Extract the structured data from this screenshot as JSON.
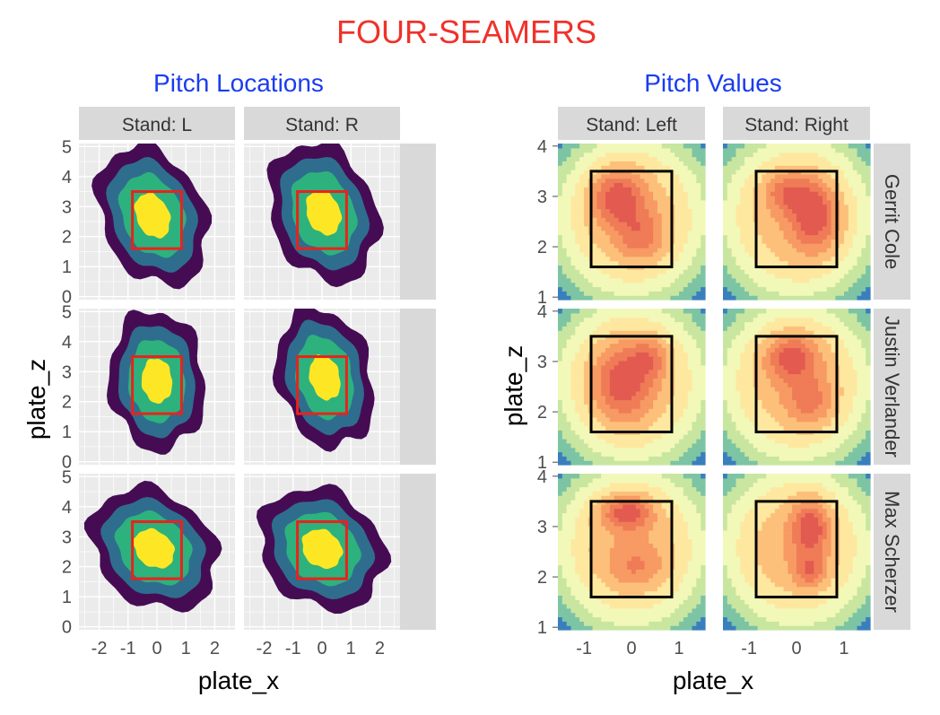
{
  "title": "FOUR-SEAMERS",
  "colors": {
    "title": "#f0322a",
    "panel_title": "#1b3cf0",
    "panel_bg": "#ebebeb",
    "strip_bg": "#d9d9d9",
    "grid": "#ffffff",
    "zone_left": "#e8231b",
    "zone_right": "#000000",
    "density": [
      "#450c54",
      "#2f6d8e",
      "#2db27d",
      "#fde725"
    ],
    "value": [
      "#3a7fbd",
      "#7cc4a4",
      "#c8e6a0",
      "#f2f8b8",
      "#fee8a0",
      "#fdc07a",
      "#f79a63",
      "#ef7b57",
      "#e25a50"
    ]
  },
  "chart_data": [
    {
      "type": "heatmap",
      "subtitle": "Pitch Locations",
      "xlabel": "plate_x",
      "ylabel": "plate_z",
      "col_strips": [
        "Stand: L",
        "Stand: R"
      ],
      "row_strips": [
        "Gerrit Cole",
        "Justin Verlander",
        "Max Scherzer"
      ],
      "xlim": [
        -2.7,
        2.7
      ],
      "ylim": [
        -0.1,
        5.1
      ],
      "x_ticks": [
        -2,
        -1,
        0,
        1,
        2
      ],
      "y_ticks": [
        0,
        1,
        2,
        3,
        4,
        5
      ],
      "grid": true,
      "strike_zone": {
        "x": [
          -0.85,
          0.85
        ],
        "z": [
          1.6,
          3.5
        ]
      },
      "density_levels": 4,
      "panels": [
        [
          {
            "cx": -0.15,
            "cz": 2.7,
            "sx": 0.95,
            "sz": 1.2,
            "skew": -0.22
          },
          {
            "cx": 0.05,
            "cz": 2.8,
            "sx": 0.95,
            "sz": 1.2,
            "skew": -0.18
          }
        ],
        [
          {
            "cx": 0.0,
            "cz": 2.7,
            "sx": 0.85,
            "sz": 1.2,
            "skew": -0.05
          },
          {
            "cx": 0.1,
            "cz": 2.8,
            "sx": 0.85,
            "sz": 1.2,
            "skew": -0.15
          }
        ],
        [
          {
            "cx": -0.1,
            "cz": 2.6,
            "sx": 1.1,
            "sz": 1.05,
            "skew": -0.25
          },
          {
            "cx": 0.0,
            "cz": 2.6,
            "sx": 1.1,
            "sz": 1.05,
            "skew": -0.2
          }
        ]
      ]
    },
    {
      "type": "heatmap",
      "subtitle": "Pitch Values",
      "xlabel": "plate_x",
      "ylabel": "plate_z",
      "col_strips": [
        "Stand: Left",
        "Stand: Right"
      ],
      "row_strips": [
        "Gerrit Cole",
        "Justin Verlander",
        "Max Scherzer"
      ],
      "xlim": [
        -1.55,
        1.55
      ],
      "ylim": [
        0.95,
        4.05
      ],
      "x_ticks": [
        -1,
        0,
        1
      ],
      "y_ticks": [
        1,
        2,
        3,
        4
      ],
      "grid": false,
      "strike_zone": {
        "x": [
          -0.85,
          0.85
        ],
        "z": [
          1.6,
          3.5
        ]
      },
      "panels": [
        [
          {
            "hot": [
              [
                -0.3,
                3.0,
                0.55,
                0.55,
                1.0
              ],
              [
                0.2,
                2.2,
                0.5,
                0.5,
                0.6
              ]
            ]
          },
          {
            "hot": [
              [
                0.4,
                2.6,
                0.5,
                0.7,
                0.95
              ],
              [
                -0.2,
                3.1,
                0.5,
                0.4,
                0.7
              ]
            ]
          }
        ],
        [
          {
            "hot": [
              [
                -0.2,
                2.6,
                0.6,
                0.75,
                0.9
              ],
              [
                0.4,
                3.1,
                0.4,
                0.4,
                0.6
              ]
            ]
          },
          {
            "hot": [
              [
                -0.1,
                3.1,
                0.55,
                0.45,
                0.95
              ],
              [
                0.3,
                2.2,
                0.5,
                0.5,
                0.6
              ]
            ]
          }
        ],
        [
          {
            "hot": [
              [
                -0.1,
                3.3,
                0.55,
                0.35,
                1.0
              ],
              [
                0.1,
                2.2,
                0.6,
                0.4,
                0.45
              ]
            ]
          },
          {
            "hot": [
              [
                0.3,
                3.0,
                0.4,
                0.55,
                1.0
              ],
              [
                0.3,
                2.1,
                0.35,
                0.35,
                0.7
              ]
            ]
          }
        ]
      ]
    }
  ]
}
